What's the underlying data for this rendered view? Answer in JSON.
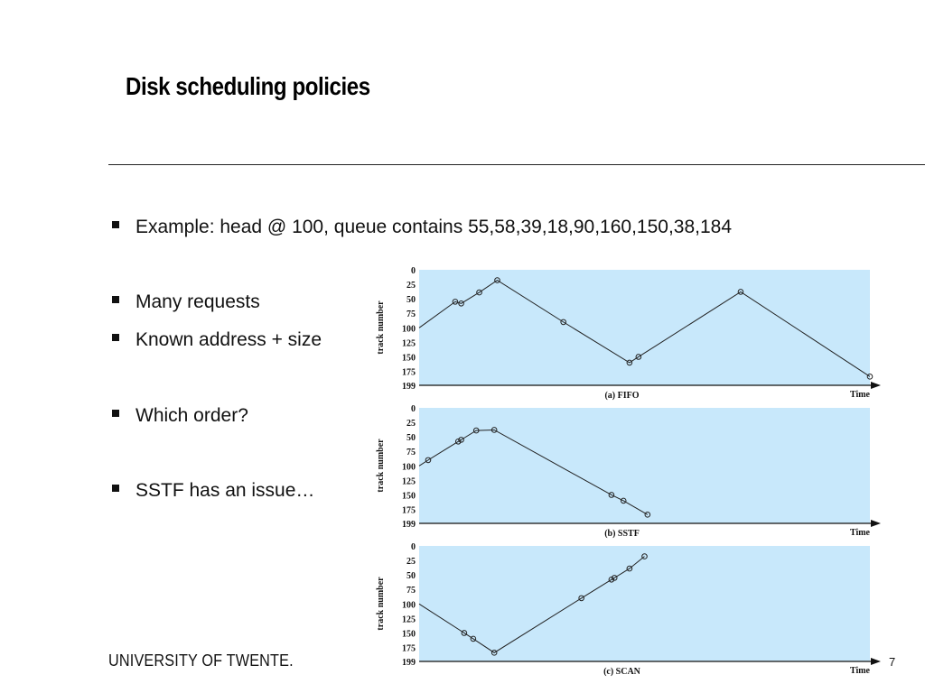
{
  "title": "Disk scheduling policies",
  "bullets": [
    "Example: head @ 100, queue contains 55,58,39,18,90,160,150,38,184",
    "Many requests",
    "Known address + size",
    "Which order?",
    "SSTF has an issue…"
  ],
  "footer": {
    "logo": "UNIVERSITY OF TWENTE.",
    "page_number": "7"
  },
  "colors": {
    "plot_bg": "#c8e8fb",
    "line": "#222222"
  },
  "chart_data": [
    {
      "type": "line",
      "title": "(a) FIFO",
      "xlabel": "Time",
      "ylabel": "track number",
      "yticks": [
        0,
        25,
        50,
        75,
        100,
        125,
        150,
        175,
        199
      ],
      "ylim": [
        0,
        199
      ],
      "y_inverted": true,
      "series": [
        {
          "x": [
            0,
            6,
            7,
            10,
            13,
            24,
            35,
            36.5,
            53.5,
            75
          ],
          "y": [
            100,
            55,
            58,
            39,
            18,
            90,
            160,
            150,
            38,
            184
          ]
        }
      ]
    },
    {
      "type": "line",
      "title": "(b) SSTF",
      "xlabel": "Time",
      "ylabel": "track number",
      "yticks": [
        0,
        25,
        50,
        75,
        100,
        125,
        150,
        175,
        199
      ],
      "ylim": [
        0,
        199
      ],
      "y_inverted": true,
      "series": [
        {
          "x": [
            0,
            1.5,
            6.5,
            7,
            9.5,
            12.5,
            32,
            34,
            38
          ],
          "y": [
            100,
            90,
            58,
            55,
            39,
            38,
            150,
            160,
            184
          ]
        }
      ]
    },
    {
      "type": "line",
      "title": "(c) SCAN",
      "xlabel": "Time",
      "ylabel": "track number",
      "yticks": [
        0,
        25,
        50,
        75,
        100,
        125,
        150,
        175,
        199
      ],
      "ylim": [
        0,
        199
      ],
      "y_inverted": true,
      "series": [
        {
          "x": [
            0,
            7.5,
            9,
            12.5,
            27,
            32,
            32.5,
            35,
            37.5
          ],
          "y": [
            100,
            150,
            160,
            184,
            90,
            58,
            55,
            39,
            18
          ]
        }
      ]
    }
  ]
}
